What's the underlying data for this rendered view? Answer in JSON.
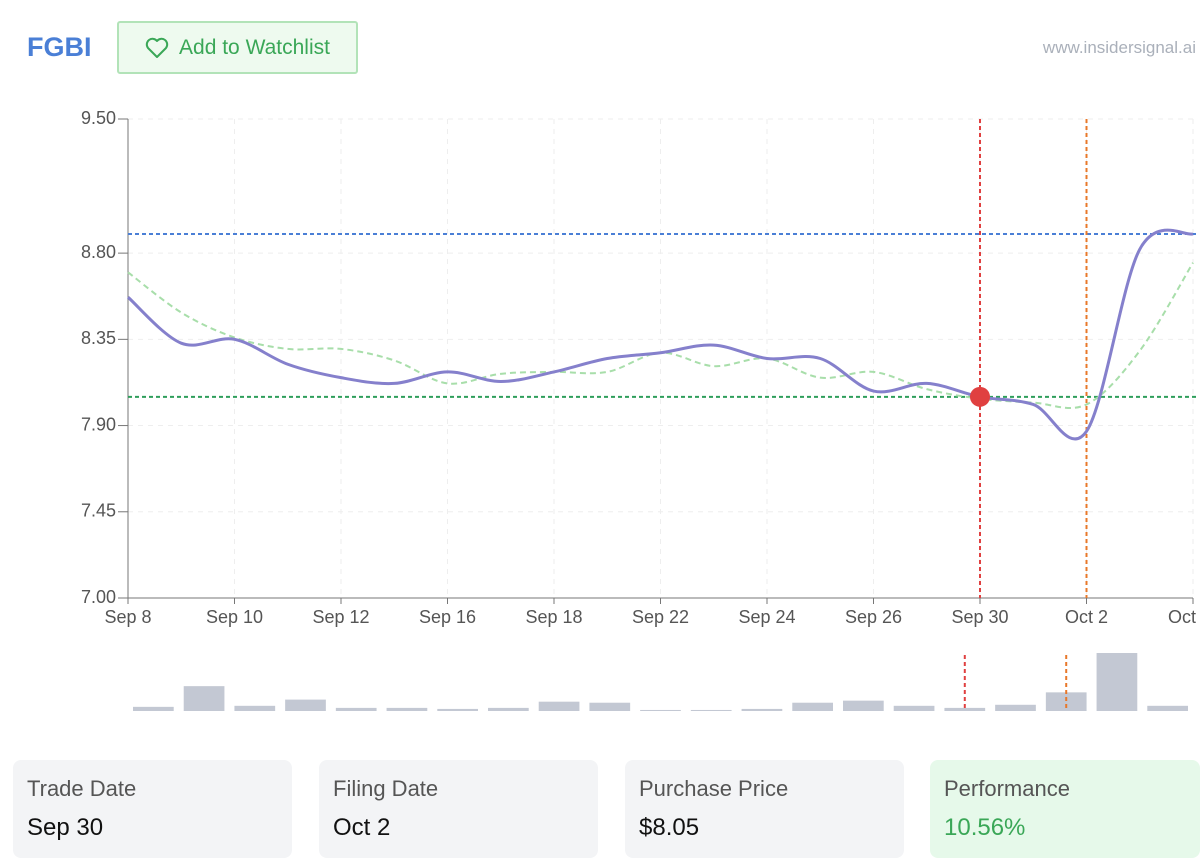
{
  "header": {
    "ticker": "FGBI",
    "watchlist_button": "Add to Watchlist",
    "site": "www.insidersignal.ai"
  },
  "chart_data": {
    "type": "line",
    "categories": [
      "Sep 8",
      null,
      "Sep 10",
      null,
      "Sep 12",
      null,
      "Sep 16",
      null,
      "Sep 18",
      null,
      "Sep 22",
      null,
      "Sep 24",
      null,
      "Sep 26",
      null,
      "Sep 30",
      null,
      "Oct 2",
      null,
      "Oct"
    ],
    "series": [
      {
        "color": "#8580cc",
        "values": [
          8.57,
          8.33,
          8.35,
          8.22,
          8.15,
          8.12,
          8.18,
          8.13,
          8.18,
          8.25,
          8.28,
          8.32,
          8.25,
          8.25,
          8.08,
          8.12,
          8.05,
          8.01,
          7.87,
          8.82,
          8.9
        ]
      },
      {
        "color": "#a8deaa",
        "dashed": true,
        "values": [
          8.7,
          8.49,
          8.36,
          8.3,
          8.3,
          8.24,
          8.12,
          8.17,
          8.18,
          8.18,
          8.28,
          8.21,
          8.25,
          8.15,
          8.18,
          8.09,
          8.04,
          8.02,
          8.01,
          8.29,
          8.75
        ]
      }
    ],
    "reference_lines": [
      {
        "value": 8.9,
        "color": "#4a7fd6"
      },
      {
        "value": 8.05,
        "color": "#2e9e5b"
      }
    ],
    "events": [
      {
        "date": "Sep 30",
        "color": "#e04040",
        "marker": true
      },
      {
        "date": "Oct 2",
        "color": "#e8782a"
      }
    ],
    "volume": {
      "color": "#c3c8d3",
      "values": [
        4,
        24,
        5,
        11,
        3,
        3,
        2,
        3,
        9,
        8,
        1,
        1,
        2,
        8,
        10,
        5,
        3,
        6,
        18,
        56,
        5
      ]
    },
    "ylim": [
      7.0,
      9.5
    ],
    "yticks": [
      {
        "value": 7.0,
        "label": "7.00"
      },
      {
        "value": 7.45,
        "label": "7.45"
      },
      {
        "value": 7.9,
        "label": "7.90"
      },
      {
        "value": 8.35,
        "label": "8.35"
      },
      {
        "value": 8.8,
        "label": "8.80"
      },
      {
        "value": 9.5,
        "label": "9.50"
      }
    ],
    "grid": true
  },
  "cards": [
    {
      "label": "Trade Date",
      "value": "Sep 30"
    },
    {
      "label": "Filing Date",
      "value": "Oct 2"
    },
    {
      "label": "Purchase Price",
      "value": "$8.05"
    },
    {
      "label": "Performance",
      "value": "10.56%"
    }
  ]
}
